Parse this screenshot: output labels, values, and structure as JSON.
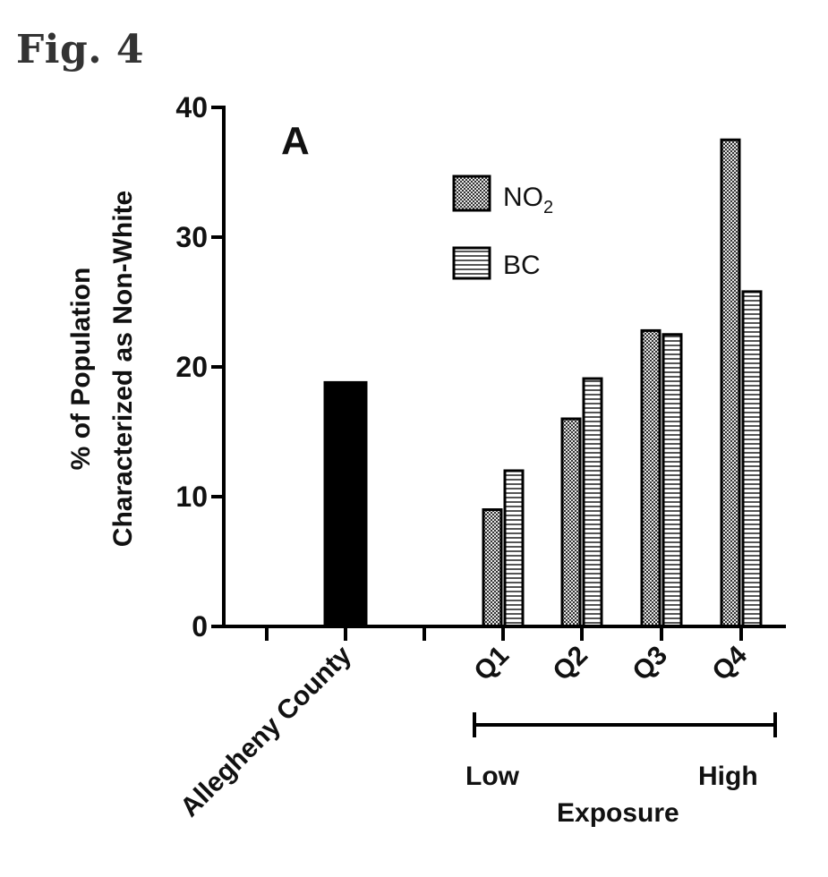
{
  "figure_title": "Fig. 4",
  "chart_data": {
    "type": "bar",
    "panel_label": "A",
    "ylabel_line1": "% of Population",
    "ylabel_line2": "Characterized as Non-White",
    "ylim": [
      0,
      40
    ],
    "yticks": [
      "0",
      "10",
      "20",
      "30",
      "40"
    ],
    "categories": [
      "Allegheny County",
      "Q1",
      "Q2",
      "Q3",
      "Q4"
    ],
    "reference": {
      "category": "Allegheny County",
      "value": 18.8,
      "color": "#000000"
    },
    "series": [
      {
        "name": "NO",
        "name_sub": "2",
        "pattern": "dots",
        "values": [
          null,
          9.0,
          16.0,
          22.8,
          37.5
        ]
      },
      {
        "name": "BC",
        "pattern": "horizontal-stripes",
        "values": [
          null,
          12.0,
          19.1,
          22.5,
          25.8
        ]
      }
    ],
    "exposure_bracket": {
      "low": "Low",
      "high": "High",
      "label": "Exposure"
    },
    "grid": false,
    "legend_position": "top-center"
  }
}
